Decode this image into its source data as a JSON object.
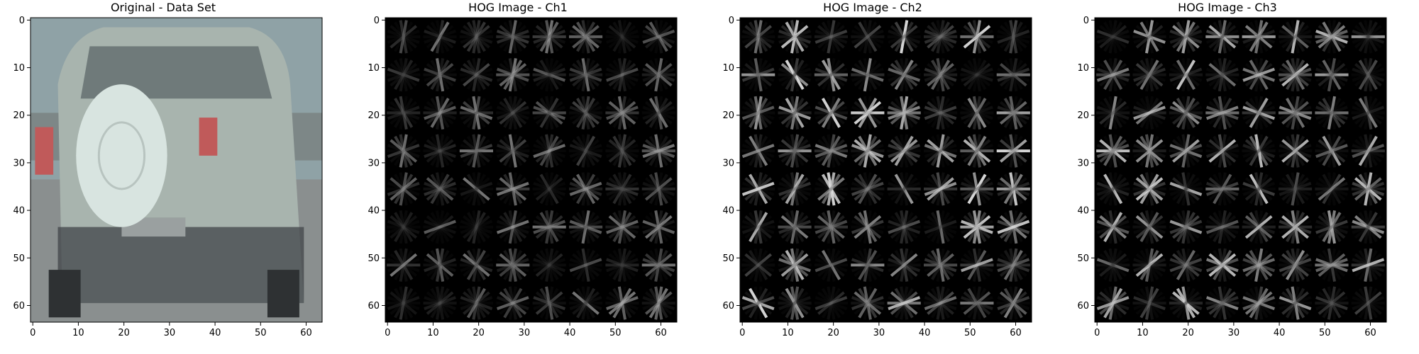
{
  "figure": {
    "panels": [
      {
        "id": "original",
        "title": "Original - Data Set",
        "kind": "photo"
      },
      {
        "id": "ch1",
        "title": "HOG Image - Ch1",
        "kind": "hog",
        "seed": 11,
        "intensity": 0.62
      },
      {
        "id": "ch2",
        "title": "HOG Image - Ch2",
        "kind": "hog",
        "seed": 23,
        "intensity": 0.9
      },
      {
        "id": "ch3",
        "title": "HOG Image - Ch3",
        "kind": "hog",
        "seed": 37,
        "intensity": 0.85
      }
    ],
    "axes": {
      "ticks_first": [
        "0",
        "10",
        "20",
        "30",
        "40",
        "50",
        "60"
      ],
      "ticks_hog": [
        "0",
        "10",
        "20",
        "30",
        "40",
        "50",
        "60"
      ],
      "range": [
        0,
        64
      ]
    },
    "colors": {
      "background": "#ffffff",
      "axis": "#000000",
      "hog_background": "#000000",
      "car_body": "#a8b4ae",
      "car_dark": "#404448",
      "sky": "#8fa2a6",
      "road": "#8a8f8f",
      "tail_light": "#c05a5a",
      "spare_tire": "#d8e4e0"
    }
  }
}
